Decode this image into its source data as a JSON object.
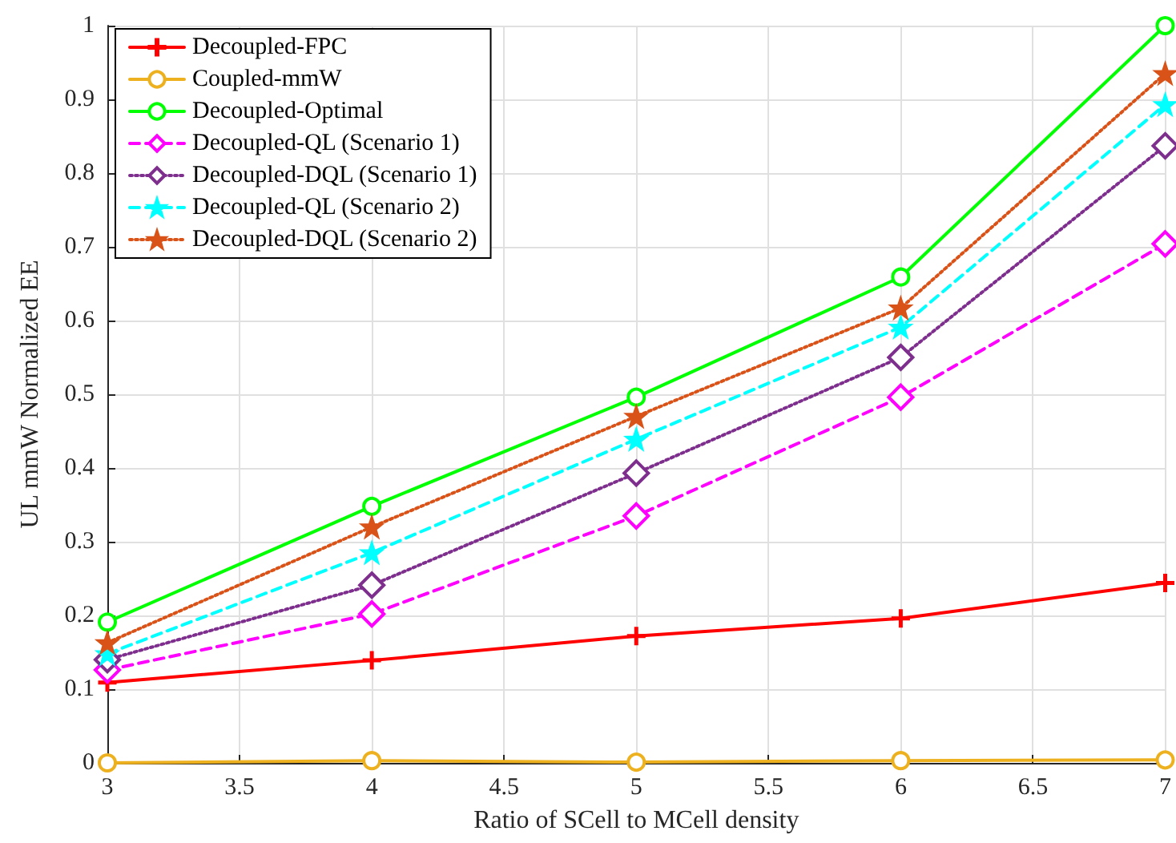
{
  "chart_data": {
    "type": "line",
    "xlabel": "Ratio of SCell to MCell density",
    "ylabel": "UL mmW Normalized EE",
    "x": [
      3,
      4,
      5,
      6,
      7
    ],
    "xlim": [
      3,
      7
    ],
    "xticks": [
      3,
      3.5,
      4,
      4.5,
      5,
      5.5,
      6,
      6.5,
      7
    ],
    "ylim": [
      0,
      1
    ],
    "yticks": [
      0,
      0.1,
      0.2,
      0.3,
      0.4,
      0.5,
      0.6,
      0.7,
      0.8,
      0.9,
      1
    ],
    "grid": true,
    "legend": "top left",
    "series": [
      {
        "name": "Decoupled-FPC",
        "color": "#ff0000",
        "marker": "cross",
        "line_style": "solid",
        "values": [
          0.109,
          0.139,
          0.172,
          0.196,
          0.244
        ]
      },
      {
        "name": "Coupled-mmW",
        "color": "#edb120",
        "marker": "circle",
        "line_style": "solid",
        "values": [
          0,
          0.003,
          0.001,
          0.003,
          0.004
        ]
      },
      {
        "name": "Decoupled-Optimal",
        "color": "#00ff00",
        "marker": "circle",
        "line_style": "solid",
        "values": [
          0.191,
          0.348,
          0.496,
          0.659,
          1.0
        ]
      },
      {
        "name": "Decoupled-QL (Scenario 1)",
        "color": "#ff00ff",
        "marker": "diamond",
        "line_style": "dashed",
        "values": [
          0.126,
          0.202,
          0.335,
          0.496,
          0.704
        ]
      },
      {
        "name": "Decoupled-DQL (Scenario 1)",
        "color": "#7e2f8e",
        "marker": "diamond",
        "line_style": "dotted",
        "values": [
          0.14,
          0.241,
          0.393,
          0.55,
          0.837
        ]
      },
      {
        "name": "Decoupled-QL (Scenario 2)",
        "color": "#00ffff",
        "marker": "star",
        "line_style": "dashed",
        "values": [
          0.148,
          0.285,
          0.439,
          0.591,
          0.893
        ]
      },
      {
        "name": "Decoupled-DQL (Scenario 2)",
        "color": "#d95319",
        "marker": "star",
        "line_style": "dotted",
        "values": [
          0.163,
          0.32,
          0.47,
          0.617,
          0.935
        ]
      }
    ]
  }
}
